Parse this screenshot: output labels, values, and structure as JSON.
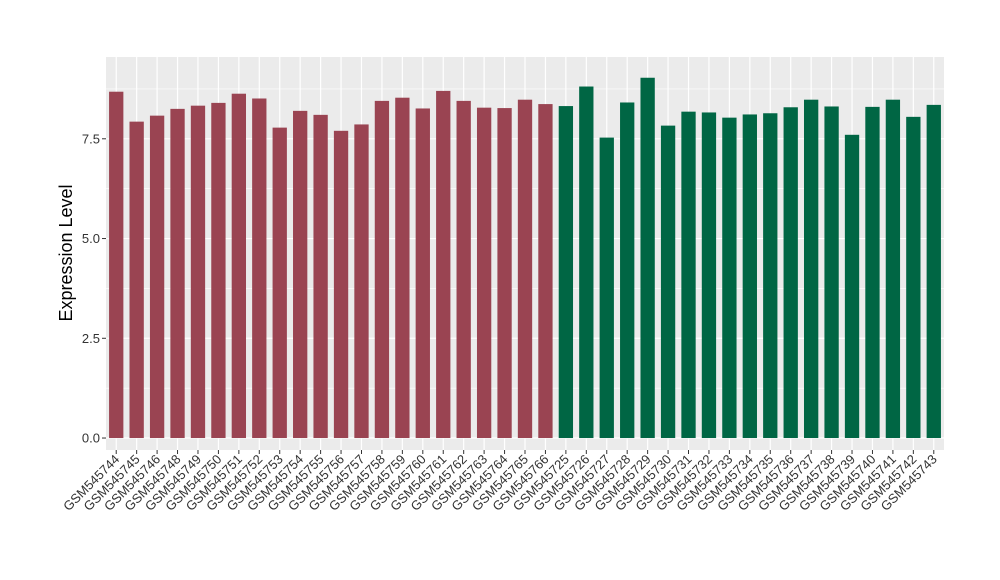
{
  "chart_data": {
    "type": "bar",
    "title": "",
    "xlabel": "",
    "ylabel": "Expression Level",
    "ylim": [
      -0.3,
      9.55
    ],
    "yticks": [
      0.0,
      2.5,
      5.0,
      7.5
    ],
    "ytick_labels": [
      "0.0",
      "2.5",
      "5.0",
      "7.5"
    ],
    "grid": true,
    "legend": "none",
    "categories": [
      "GSM545744",
      "GSM545745",
      "GSM545746",
      "GSM545748",
      "GSM545749",
      "GSM545750",
      "GSM545751",
      "GSM545752",
      "GSM545753",
      "GSM545754",
      "GSM545755",
      "GSM545756",
      "GSM545757",
      "GSM545758",
      "GSM545759",
      "GSM545760",
      "GSM545761",
      "GSM545762",
      "GSM545763",
      "GSM545764",
      "GSM545765",
      "GSM545766",
      "GSM545725",
      "GSM545726",
      "GSM545727",
      "GSM545728",
      "GSM545729",
      "GSM545730",
      "GSM545731",
      "GSM545732",
      "GSM545733",
      "GSM545734",
      "GSM545735",
      "GSM545736",
      "GSM545737",
      "GSM545738",
      "GSM545739",
      "GSM545740",
      "GSM545741",
      "GSM545742",
      "GSM545743"
    ],
    "values": [
      8.68,
      7.93,
      8.08,
      8.25,
      8.33,
      8.4,
      8.63,
      8.51,
      7.78,
      8.2,
      8.1,
      7.7,
      7.86,
      8.45,
      8.53,
      8.26,
      8.7,
      8.45,
      8.28,
      8.27,
      8.48,
      8.37,
      8.32,
      8.81,
      7.53,
      8.41,
      9.03,
      7.83,
      8.18,
      8.16,
      8.03,
      8.11,
      8.14,
      8.29,
      8.48,
      8.31,
      7.6,
      8.3,
      8.48,
      8.05,
      8.35
    ],
    "bar_colors": [
      "#9A4452",
      "#9A4452",
      "#9A4452",
      "#9A4452",
      "#9A4452",
      "#9A4452",
      "#9A4452",
      "#9A4452",
      "#9A4452",
      "#9A4452",
      "#9A4452",
      "#9A4452",
      "#9A4452",
      "#9A4452",
      "#9A4452",
      "#9A4452",
      "#9A4452",
      "#9A4452",
      "#9A4452",
      "#9A4452",
      "#9A4452",
      "#9A4452",
      "#006644",
      "#006644",
      "#006644",
      "#006644",
      "#006644",
      "#006644",
      "#006644",
      "#006644",
      "#006644",
      "#006644",
      "#006644",
      "#006644",
      "#006644",
      "#006644",
      "#006644",
      "#006644",
      "#006644",
      "#006644",
      "#006644"
    ],
    "panel_background": "#EBEBEB",
    "gridline_color": "#FFFFFF"
  }
}
